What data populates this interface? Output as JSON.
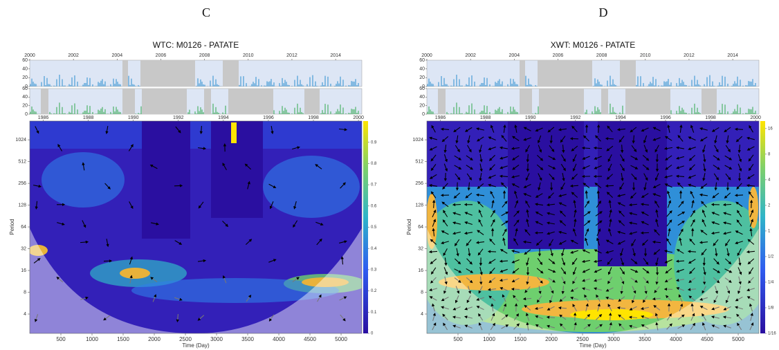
{
  "chart_data": [
    {
      "type": "heatmap",
      "panel_label": "C",
      "title": "WTC: M0126 - PATATE",
      "xlabel": "Time (Day)",
      "ylabel": "Period",
      "xlim": [
        0,
        5333
      ],
      "xticks": [
        500,
        1000,
        1500,
        2000,
        2500,
        3000,
        3500,
        4000,
        4500,
        5000
      ],
      "ylim": [
        2.16,
        1860
      ],
      "yticks": [
        4,
        8,
        16,
        32,
        64,
        128,
        256,
        512,
        1024
      ],
      "log_y": true,
      "colorbar": {
        "lim": [
          0,
          1
        ],
        "ticks": [
          0,
          0.1,
          0.2,
          0.3,
          0.4,
          0.5,
          0.6,
          0.7,
          0.8,
          0.9
        ],
        "log": false
      },
      "top_axis": {
        "xlim": [
          2000,
          2015.2
        ],
        "xticks": [
          2000,
          2002,
          2004,
          2006,
          2008,
          2010,
          2012,
          2014
        ]
      },
      "second_axis": {
        "xlim": [
          1985.4,
          2000.15
        ],
        "xticks": [
          1986,
          1988,
          1990,
          1992,
          1994,
          1996,
          1998,
          2000
        ]
      },
      "inset_axis": {
        "ylim": [
          0,
          60
        ],
        "yticks": [
          0,
          20,
          40,
          60
        ]
      }
    },
    {
      "type": "heatmap",
      "panel_label": "D",
      "title": "XWT: M0126 - PATATE",
      "xlabel": "Time (Day)",
      "ylabel": "Period",
      "xlim": [
        0,
        5333
      ],
      "xticks": [
        500,
        1000,
        1500,
        2000,
        2500,
        3000,
        3500,
        4000,
        4500,
        5000
      ],
      "ylim": [
        2.16,
        1860
      ],
      "yticks": [
        4,
        8,
        16,
        32,
        64,
        128,
        256,
        512,
        1024
      ],
      "log_y": true,
      "colorbar": {
        "lim": [
          0.0625,
          19.6
        ],
        "log": true,
        "ticks": [
          {
            "value": 0.0625,
            "label": "1/16"
          },
          {
            "value": 0.125,
            "label": "1/8"
          },
          {
            "value": 0.25,
            "label": "1/4"
          },
          {
            "value": 0.5,
            "label": "1/2"
          },
          1,
          2,
          4,
          8,
          16
        ]
      },
      "top_axis": {
        "xlim": [
          2000,
          2015.2
        ],
        "xticks": [
          2000,
          2002,
          2004,
          2006,
          2008,
          2010,
          2012,
          2014
        ]
      },
      "second_axis": {
        "xlim": [
          1985.4,
          2000.15
        ],
        "xticks": [
          1986,
          1988,
          1990,
          1992,
          1994,
          1996,
          1998,
          2000
        ]
      },
      "inset_axis": {
        "ylim": [
          0,
          60
        ],
        "yticks": [
          0,
          20,
          40,
          60
        ]
      }
    }
  ]
}
